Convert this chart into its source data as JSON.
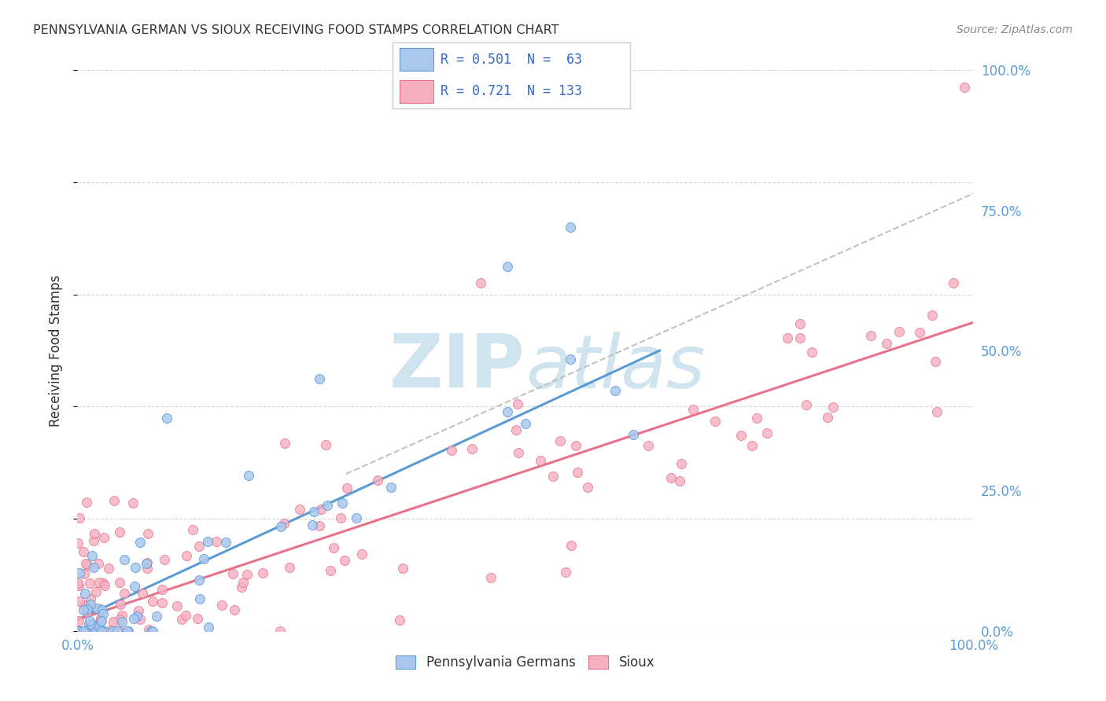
{
  "title": "PENNSYLVANIA GERMAN VS SIOUX RECEIVING FOOD STAMPS CORRELATION CHART",
  "source": "Source: ZipAtlas.com",
  "ylabel": "Receiving Food Stamps",
  "ytick_values": [
    0,
    25,
    50,
    75,
    100
  ],
  "xlim": [
    0,
    100
  ],
  "ylim": [
    0,
    100
  ],
  "blue_R": 0.501,
  "blue_N": 63,
  "pink_R": 0.721,
  "pink_N": 133,
  "blue_line_x": [
    0,
    65
  ],
  "blue_line_y": [
    2,
    50
  ],
  "pink_line_x": [
    0,
    100
  ],
  "pink_line_y": [
    2,
    55
  ],
  "dashed_line_x": [
    30,
    100
  ],
  "dashed_line_y": [
    28,
    78
  ],
  "background_color": "#ffffff",
  "grid_color": "#cccccc",
  "title_color": "#333333",
  "source_color": "#888888",
  "blue_color": "#5b9bd5",
  "pink_color": "#e8728a",
  "blue_scatter_color": "#aac8ee",
  "pink_scatter_color": "#f4b0bf",
  "dashed_line_color": "#bbbbbb",
  "axis_label_color": "#5b9bd5",
  "watermark_color": "#d0e4f0",
  "legend_text_color": "#3366cc"
}
